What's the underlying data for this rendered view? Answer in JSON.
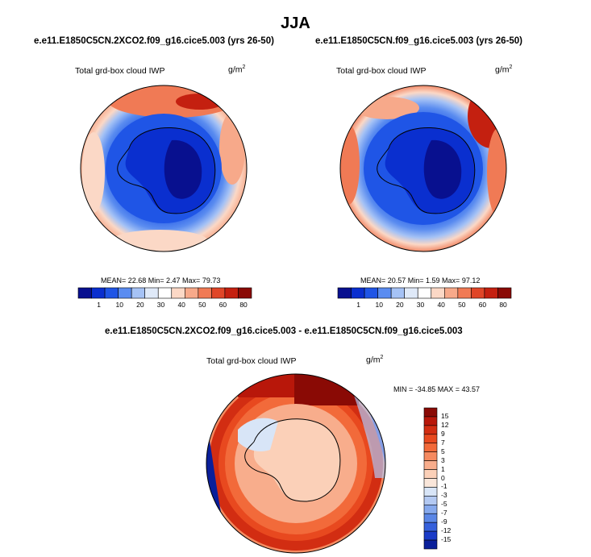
{
  "figure": {
    "season": "JJA"
  },
  "panels": [
    {
      "title": "e.e11.E1850C5CN.2XCO2.f09_g16.cice5.003 (yrs 26-50)",
      "variable": "Total grd-box cloud IWP",
      "units_base": "g/m",
      "units_exp": "2",
      "stats": "MEAN=  22.68  Min=   2.47  Max=  79.73",
      "mean": 22.68,
      "min": 2.47,
      "max": 79.73
    },
    {
      "title": "e.e11.E1850C5CN.f09_g16.cice5.003 (yrs 26-50)",
      "variable": "Total grd-box cloud IWP",
      "units_base": "g/m",
      "units_exp": "2",
      "stats": "MEAN=  20.57  Min=   1.59  Max=  97.12",
      "mean": 20.57,
      "min": 1.59,
      "max": 97.12
    }
  ],
  "difference": {
    "title": "e.e11.E1850C5CN.2XCO2.f09_g16.cice5.003 - e.e11.E1850C5CN.f09_g16.cice5.003",
    "variable": "Total grd-box cloud IWP",
    "units_base": "g/m",
    "units_exp": "2",
    "stats": "MIN = -34.85 MAX =  43.57",
    "min": -34.85,
    "max": 43.57
  },
  "colorbar_abs": {
    "labels": [
      "1",
      "10",
      "20",
      "30",
      "40",
      "50",
      "60",
      "80"
    ],
    "colors": [
      "#08108f",
      "#0a2fcf",
      "#1f55e6",
      "#5a8cf0",
      "#a5c2f5",
      "#dfe9f8",
      "#ffffff",
      "#fbd8c6",
      "#f7a98a",
      "#f07a55",
      "#e04628",
      "#c42010",
      "#8a0a05"
    ]
  },
  "colorbar_diff": {
    "labels": [
      "15",
      "12",
      "9",
      "7",
      "5",
      "3",
      "1",
      "0",
      "-1",
      "-3",
      "-5",
      "-7",
      "-9",
      "-12",
      "-15"
    ],
    "colors": [
      "#8a0a05",
      "#b8170a",
      "#d22d12",
      "#e8491f",
      "#f26a3a",
      "#f58a60",
      "#f8ad8c",
      "#fbd0b8",
      "#f9e6da",
      "#d8e5f7",
      "#b3c9f2",
      "#86a9ed",
      "#5a86e6",
      "#3560dc",
      "#1a3bc8",
      "#0a1f9a"
    ]
  },
  "colors": {
    "land_outline": "#000000"
  }
}
